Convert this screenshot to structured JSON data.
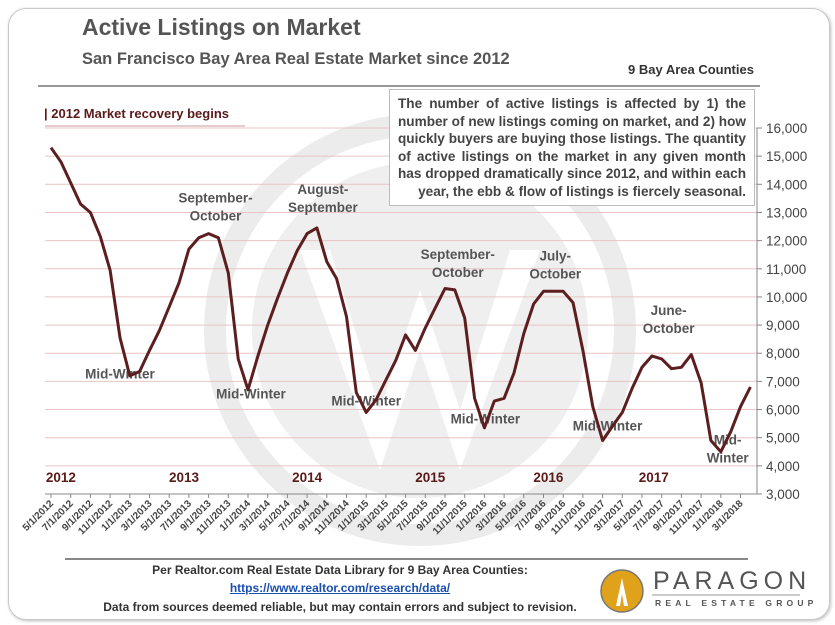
{
  "title": "Active Listings on Market",
  "subtitle": "San Francisco Bay Area Real Estate Market since 2012",
  "region_label": "9 Bay Area Counties",
  "recovery_label": "| 2012 Market recovery begins",
  "note": "The number of active listings is affected by 1) the number of new listings coming on market, and 2) how quickly buyers are buying those listings. The quantity of active listings on the market in any given month has dropped dramatically since 2012, and within each year, the ebb & flow of listings is fiercely seasonal.",
  "footer": {
    "line1": "Per Realtor.com Real Estate Data Library for 9 Bay Area Counties:",
    "link": "https://www.realtor.com/research/data/",
    "line3": "Data from sources deemed reliable, but may contain errors and subject to revision."
  },
  "logo": {
    "name": "PARAGON",
    "sub": "REAL ESTATE GROUP",
    "color": "#e0a11b"
  },
  "colors": {
    "line": "#5c1e1e",
    "grid": "#e8c4c4",
    "year": "#5a1a1a",
    "annotation": "#555555"
  },
  "chart_data": {
    "type": "line",
    "title": "Active Listings on Market",
    "ylim": [
      3000,
      16000
    ],
    "yticks": [
      "3,000",
      "4,000",
      "5,000",
      "6,000",
      "7,000",
      "8,000",
      "9,000",
      "10,000",
      "11,000",
      "12,000",
      "13,000",
      "14,000",
      "15,000",
      "16,000"
    ],
    "ytick_position": "right",
    "grid": true,
    "x_start": "5/1/2012",
    "x_tick_labels": [
      "5/1/2012",
      "7/1/2012",
      "9/1/2012",
      "11/1/2012",
      "1/1/2013",
      "3/1/2013",
      "5/1/2013",
      "7/1/2013",
      "9/1/2013",
      "11/1/2013",
      "1/1/2014",
      "3/1/2014",
      "5/1/2014",
      "7/1/2014",
      "9/1/2014",
      "11/1/2014",
      "1/1/2015",
      "3/1/2015",
      "5/1/2015",
      "7/1/2015",
      "9/1/2015",
      "11/1/2015",
      "1/1/2016",
      "3/1/2016",
      "5/1/2016",
      "7/1/2016",
      "9/1/2016",
      "11/1/2016",
      "1/1/2017",
      "3/1/2017",
      "5/1/2017",
      "7/1/2017",
      "9/1/2017",
      "11/1/2017",
      "1/1/2018",
      "3/1/2018"
    ],
    "values": [
      15300,
      14800,
      14050,
      13300,
      13000,
      12150,
      10950,
      8550,
      7200,
      7350,
      8100,
      8800,
      9650,
      10500,
      11700,
      12100,
      12250,
      12100,
      10850,
      7800,
      6700,
      7900,
      9000,
      9950,
      10850,
      11650,
      12250,
      12450,
      11250,
      10650,
      9300,
      6600,
      5900,
      6350,
      7050,
      7750,
      8650,
      8100,
      8900,
      9600,
      10300,
      10250,
      9250,
      6400,
      5350,
      6300,
      6400,
      7300,
      8700,
      9750,
      10200,
      10200,
      10200,
      9800,
      8100,
      6100,
      4900,
      5400,
      5900,
      6750,
      7500,
      7900,
      7800,
      7450,
      7500,
      7950,
      6950,
      4900,
      4500,
      5200,
      6100,
      6800
    ],
    "year_labels": [
      {
        "text": "2012",
        "month_index": 1
      },
      {
        "text": "2013",
        "month_index": 13.5
      },
      {
        "text": "2014",
        "month_index": 26
      },
      {
        "text": "2015",
        "month_index": 38.5
      },
      {
        "text": "2016",
        "month_index": 50.5
      },
      {
        "text": "2017",
        "month_index": 61.2
      }
    ],
    "annotations": [
      {
        "lines": [
          "Mid-Winter"
        ],
        "month_index": 7,
        "value": 7100
      },
      {
        "lines": [
          "September-",
          "October"
        ],
        "month_index": 16.7,
        "value": 13350
      },
      {
        "lines": [
          "Mid-Winter"
        ],
        "month_index": 20.3,
        "value": 6400
      },
      {
        "lines": [
          "August-",
          "September"
        ],
        "month_index": 27.6,
        "value": 13650
      },
      {
        "lines": [
          "Mid-Winter"
        ],
        "month_index": 32,
        "value": 6150
      },
      {
        "lines": [
          "September-",
          "October"
        ],
        "month_index": 41.3,
        "value": 11350
      },
      {
        "lines": [
          "Mid-Winter"
        ],
        "month_index": 44.1,
        "value": 5500
      },
      {
        "lines": [
          "July-",
          "October"
        ],
        "month_index": 51.2,
        "value": 11300
      },
      {
        "lines": [
          "Mid-Winter"
        ],
        "month_index": 56.5,
        "value": 5250
      },
      {
        "lines": [
          "June-",
          "October"
        ],
        "month_index": 62.7,
        "value": 9350
      },
      {
        "lines": [
          "Mid-",
          "Winter"
        ],
        "month_index": 68.7,
        "value": 4750
      }
    ]
  }
}
